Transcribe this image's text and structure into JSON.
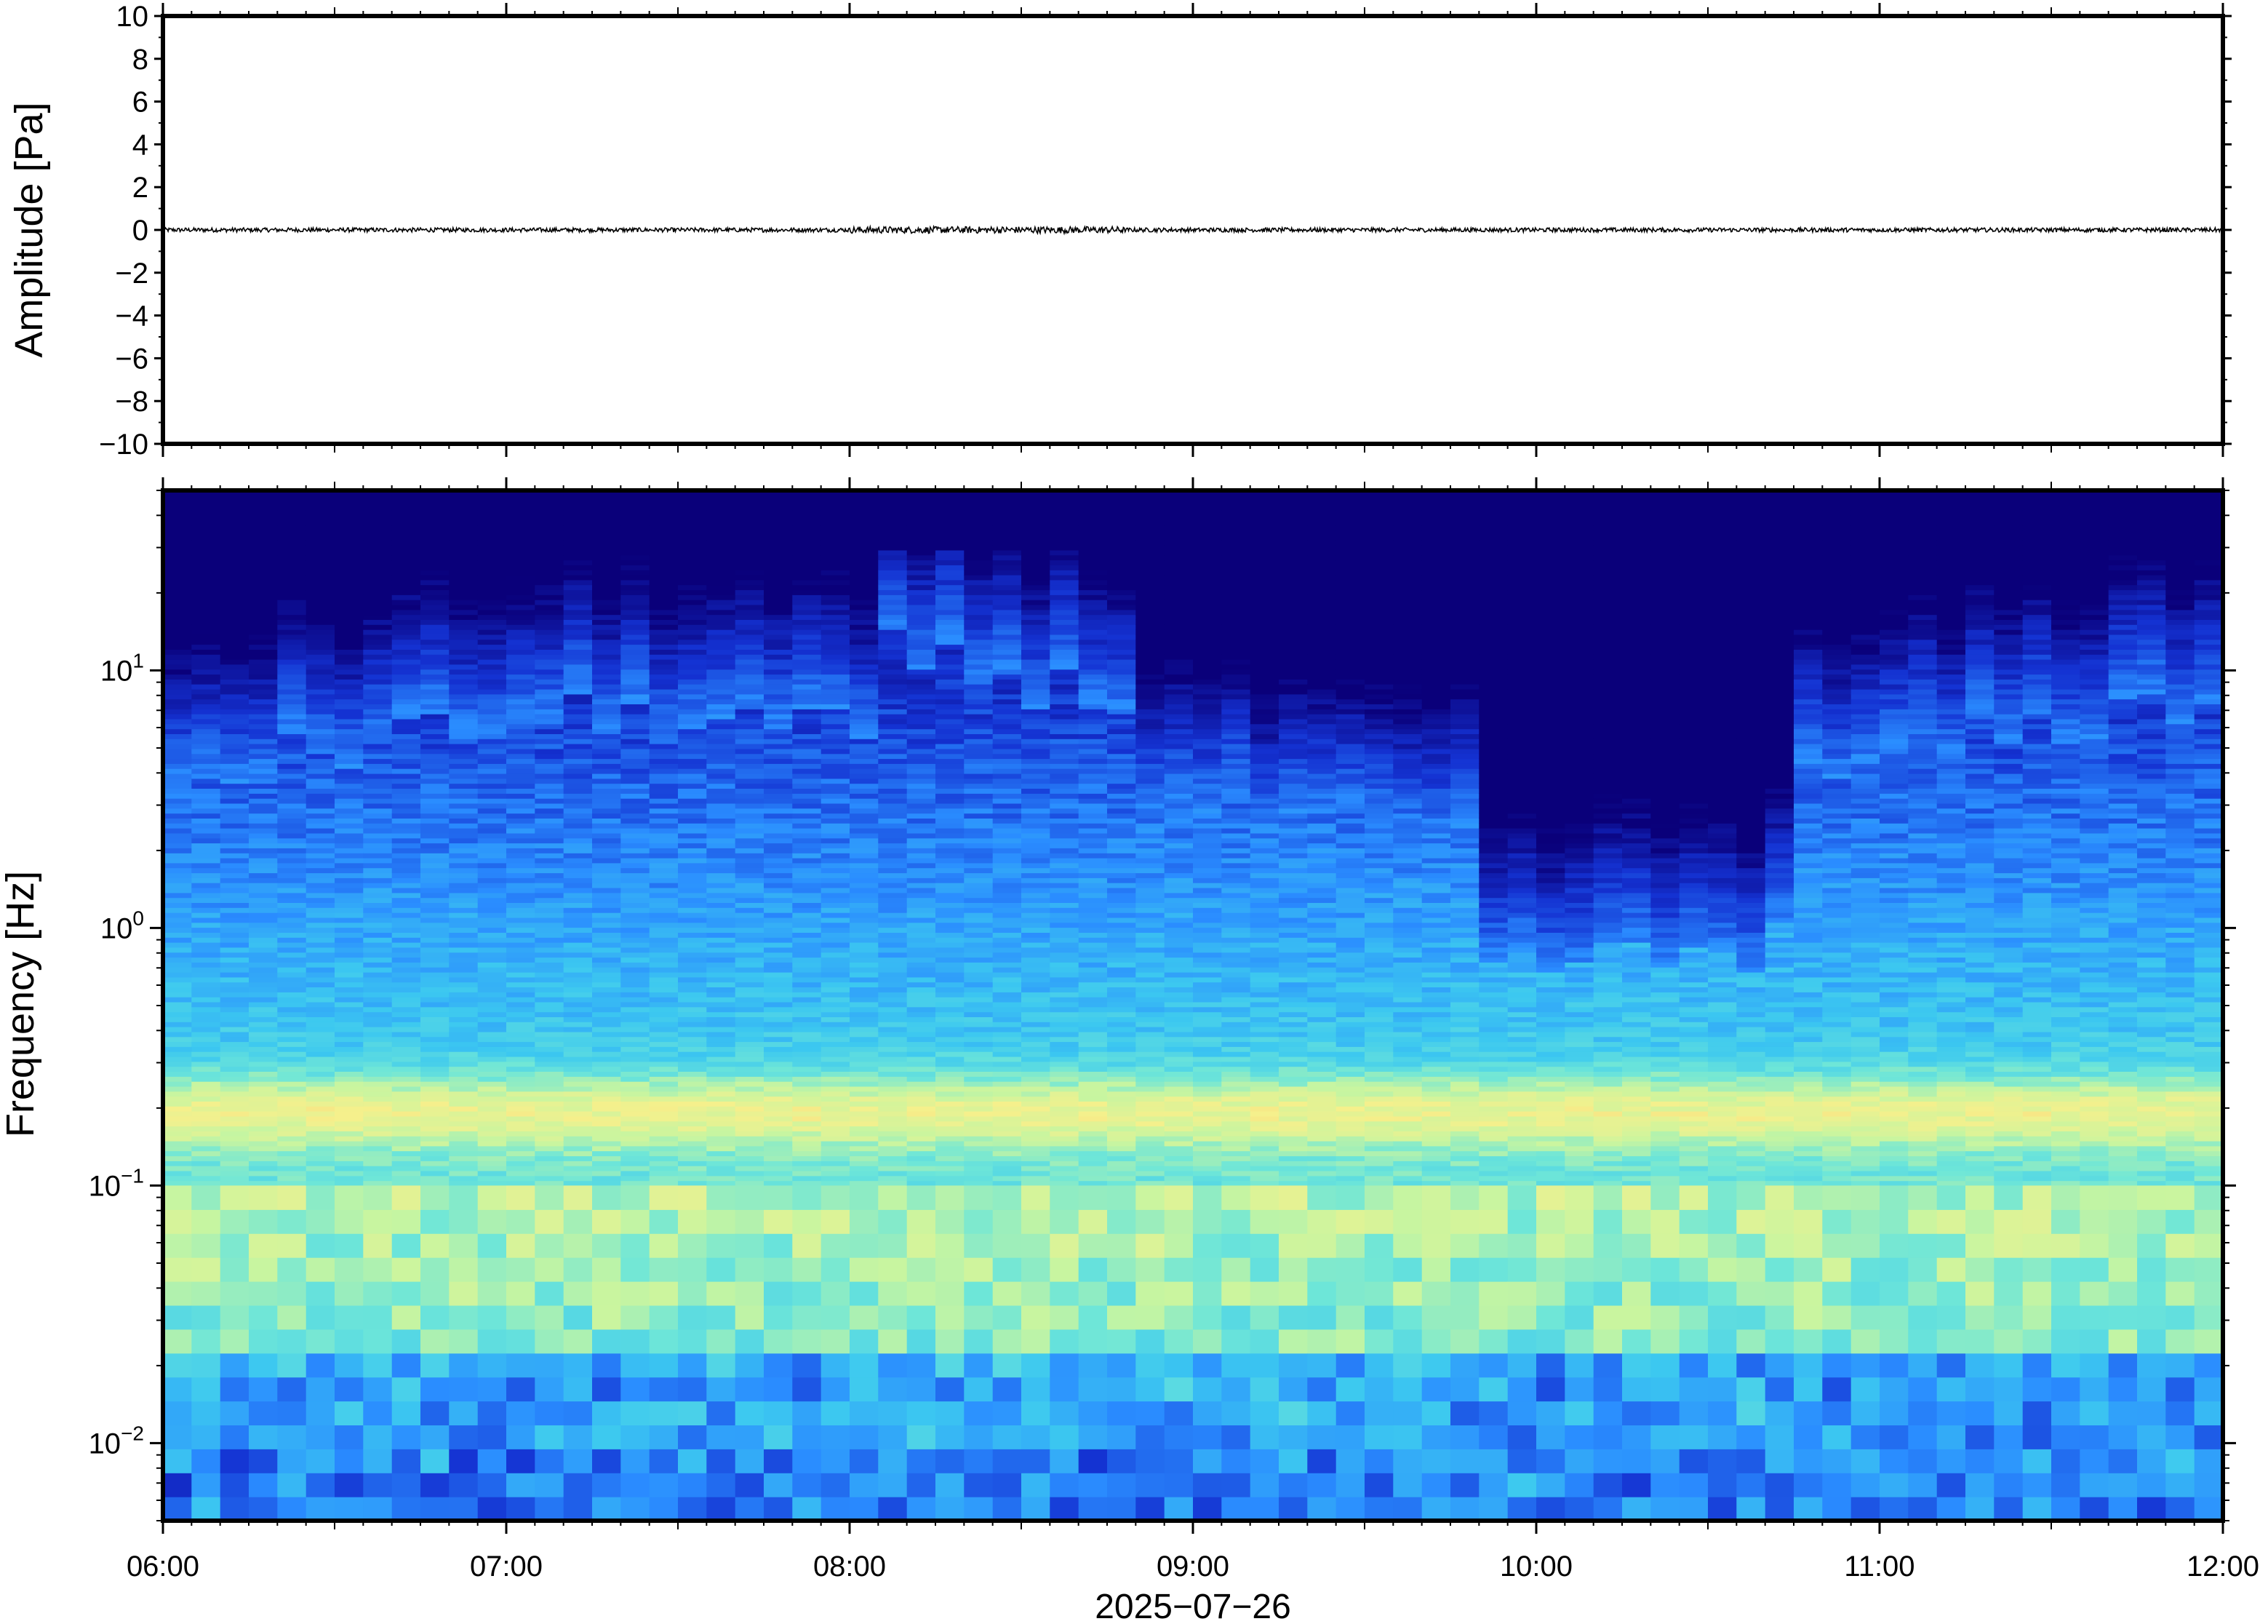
{
  "chart_data": [
    {
      "type": "line",
      "ylabel": "Amplitude [Pa]",
      "ylim": [
        -10,
        10
      ],
      "yticks": [
        10,
        8,
        6,
        4,
        2,
        0,
        -2,
        -4,
        -6,
        -8,
        -10
      ],
      "ytick_labels": [
        "10",
        "8",
        "6",
        "4",
        "2",
        "0",
        "−2",
        "−4",
        "−6",
        "−8",
        "−10"
      ],
      "xlim": [
        "06:00",
        "12:00"
      ],
      "series": [
        {
          "values_description_free": true,
          "typical_amplitude_pa": 0.1,
          "mean_pa": 0
        }
      ],
      "grid": false,
      "line_color": "#000000"
    },
    {
      "type": "heatmap",
      "ylabel": "Frequency [Hz]",
      "yscale": "log",
      "ylim": [
        0.005,
        50
      ],
      "ytick_values": [
        10,
        1,
        0.1,
        0.01
      ],
      "ytick_labels": [
        {
          "base": "10",
          "exp": "1"
        },
        {
          "base": "10",
          "exp": "0"
        },
        {
          "base": "10",
          "exp": "−1"
        },
        {
          "base": "10",
          "exp": "−2"
        }
      ],
      "x_ticks": [
        "06:00",
        "07:00",
        "08:00",
        "09:00",
        "10:00",
        "11:00",
        "12:00"
      ],
      "xlabel": "2025−07−26",
      "colormap": [
        "#0a007a",
        "#1432d2",
        "#2a8cff",
        "#3cc8f0",
        "#6ee6d8",
        "#c8f5a0",
        "#f5f08c",
        "#ffb464"
      ],
      "ridge_frequency_hz": 0.19,
      "grid": false
    }
  ],
  "x_axis": {
    "tick_labels": [
      "06:00",
      "07:00",
      "08:00",
      "09:00",
      "10:00",
      "11:00",
      "12:00"
    ],
    "date_label": "2025−07−26"
  }
}
